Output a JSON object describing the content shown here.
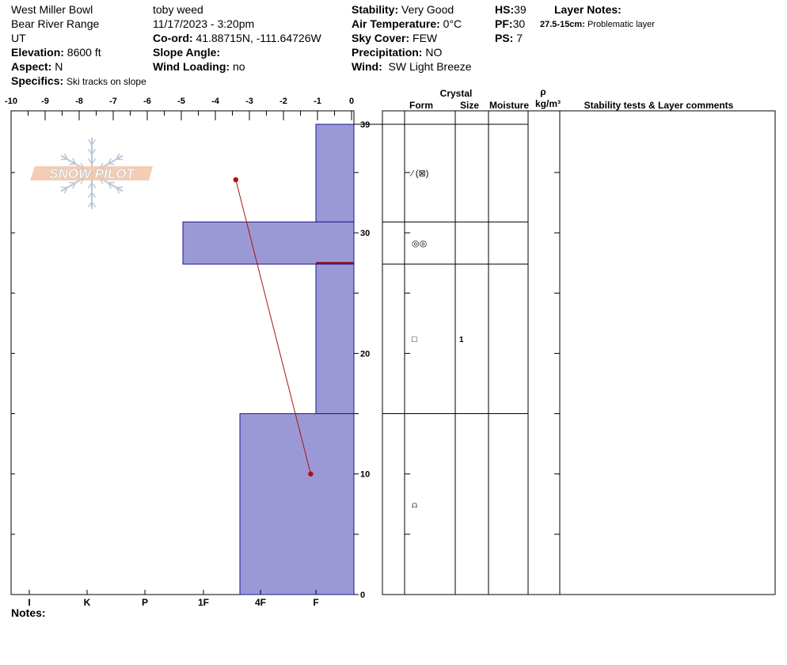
{
  "header": {
    "location": "West Miller Bowl",
    "range": "Bear River Range",
    "state": "UT",
    "elevation_label": "Elevation:",
    "elevation": "8600 ft",
    "aspect_label": "Aspect:",
    "aspect": "N",
    "specifics_label": "Specifics:",
    "specifics": "Ski tracks on slope",
    "observer": "toby weed",
    "datetime": "11/17/2023 - 3:20pm",
    "coord_label": "Co-ord:",
    "coord": "41.88715N, -111.64726W",
    "slope_label": "Slope Angle:",
    "slope": "",
    "wind_loading_label": "Wind Loading:",
    "wind_loading": "no",
    "stability_label": "Stability:",
    "stability": "Very Good",
    "air_temp_label": "Air Temperature:",
    "air_temp": "0°C",
    "sky_label": "Sky Cover:",
    "sky": "FEW",
    "precip_label": "Precipitation:",
    "precip": "NO",
    "wind_label": "Wind:",
    "wind": "SW Light Breeze",
    "hs_label": "HS:",
    "hs": "39",
    "pf_label": "PF:",
    "pf": "30",
    "ps_label": "PS:",
    "ps": "7",
    "layer_notes_label": "Layer Notes:",
    "layer_note_range": "27.5-15cm:",
    "layer_note_text": "Problematic layer",
    "notes_label": "Notes:"
  },
  "logo_text": "SNOW PILOT",
  "table": {
    "crystal_label": "Crystal",
    "form_label": "Form",
    "size_label": "Size",
    "moisture_label": "Moisture",
    "rho_label": "ρ",
    "density_unit": "kg/m³",
    "stability_label": "Stability tests & Layer comments"
  },
  "colors": {
    "hardness_fill": "#9a99d6",
    "hardness_stroke": "#1a1a8c",
    "temperature_line": "#b01010",
    "problem_line": "#8b1030"
  },
  "chart_data": {
    "type": "snow_profile",
    "temperature_axis": {
      "ticks": [
        "-10",
        "-9",
        "-8",
        "-7",
        "-6",
        "-5",
        "-4",
        "-3",
        "-2",
        "-1",
        "0"
      ],
      "range": [
        -10,
        0
      ]
    },
    "hardness_axis": {
      "ticks": [
        "I",
        "K",
        "P",
        "1F",
        "4F",
        "F"
      ]
    },
    "height_axis": {
      "range": [
        0,
        39
      ],
      "ticks": [
        "0",
        "10",
        "20",
        "30",
        "39"
      ]
    },
    "layers": [
      {
        "top": 39,
        "bottom": 30.9,
        "hardness": "F",
        "form_icon": "⁄ (⊠)",
        "size": ""
      },
      {
        "top": 30.9,
        "bottom": 27.4,
        "hardness": "1F+",
        "form_icon": "◎◎",
        "size": ""
      },
      {
        "top": 27.4,
        "bottom": 15,
        "hardness": "F",
        "form_icon": "□",
        "size": "1"
      },
      {
        "top": 15,
        "bottom": 0,
        "hardness": "4F-",
        "form_icon": "⩍",
        "size": ""
      }
    ],
    "problematic_layer_cm": 27.5,
    "temperature_profile": [
      {
        "height": 34.4,
        "temp": -3.4
      },
      {
        "height": 10,
        "temp": -1.2
      }
    ]
  }
}
